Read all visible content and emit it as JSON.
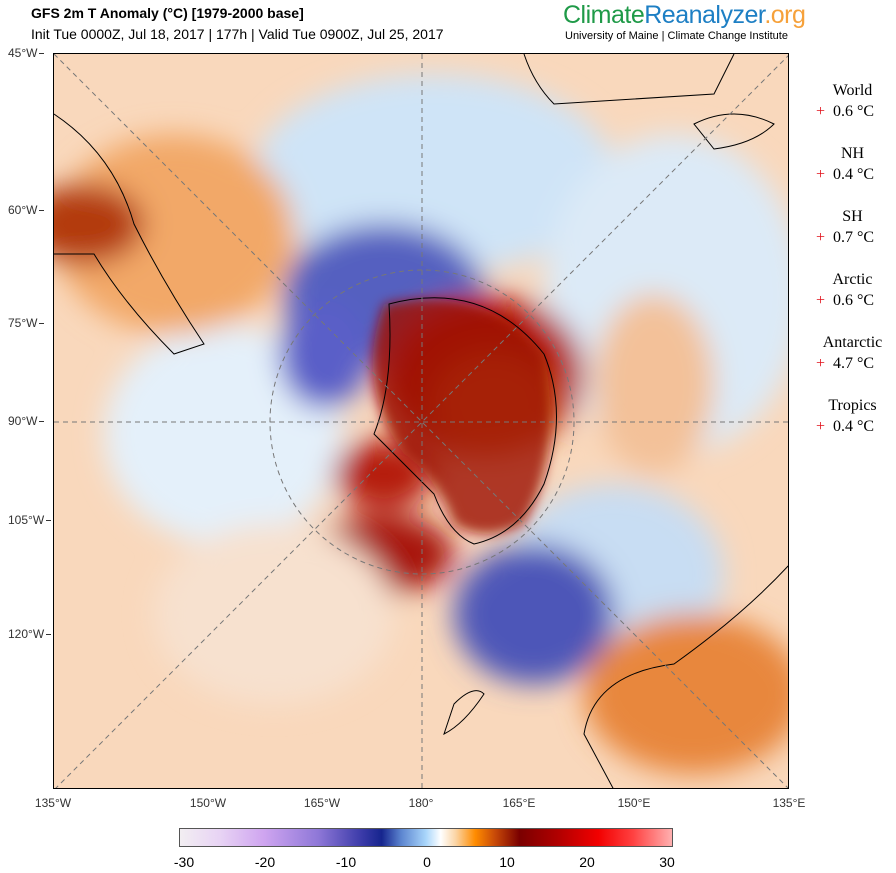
{
  "header": {
    "title": "GFS 2m T Anomaly (°C) [1979-2000 base]",
    "subtitle": "Init Tue 0000Z, Jul 18, 2017 | 177h | Valid Tue 0900Z, Jul 25, 2017",
    "logo": {
      "climate": "Climate",
      "reanalyzer": "Reanalyzer",
      ".org": ".org"
    },
    "institution": "University of Maine | Climate Change Institute"
  },
  "map": {
    "projection": "south-polar-stereographic",
    "left_axis_labels": [
      "45°W",
      "60°W",
      "75°W",
      "90°W",
      "105°W",
      "120°W"
    ],
    "bottom_axis_labels": [
      "135°W",
      "150°W",
      "165°W",
      "180°",
      "165°E",
      "150°E",
      "135°E"
    ]
  },
  "stats": [
    {
      "label": "World",
      "sign": "+",
      "value": "0.6 °C"
    },
    {
      "label": "NH",
      "sign": "+",
      "value": "0.4 °C"
    },
    {
      "label": "SH",
      "sign": "+",
      "value": "0.7 °C"
    },
    {
      "label": "Arctic",
      "sign": "+",
      "value": "0.6 °C"
    },
    {
      "label": "Antarctic",
      "sign": "+",
      "value": "4.7 °C"
    },
    {
      "label": "Tropics",
      "sign": "+",
      "value": "0.4 °C"
    }
  ],
  "colorbar": {
    "ticks": [
      "-30",
      "-20",
      "-10",
      "0",
      "10",
      "20",
      "30"
    ],
    "min": -30,
    "max": 30,
    "unit": "°C"
  },
  "colors": {
    "warm": "#c84a08",
    "hot": "#a00000",
    "cold": "#3a3aa8",
    "cool": "#a9d6fb",
    "plus": "#e0101a"
  }
}
